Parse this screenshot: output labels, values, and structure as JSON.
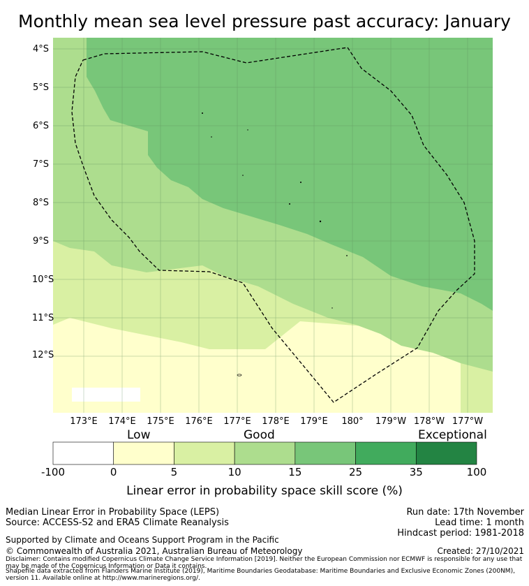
{
  "title": "Monthly mean sea level pressure past accuracy: January",
  "map": {
    "lat_labels": [
      "4°S",
      "5°S",
      "6°S",
      "7°S",
      "8°S",
      "9°S",
      "10°S",
      "11°S",
      "12°S"
    ],
    "lon_labels": [
      "173°E",
      "174°E",
      "175°E",
      "176°E",
      "177°E",
      "178°E",
      "179°E",
      "180°",
      "179°W",
      "178°W",
      "177°W"
    ],
    "boundary": "Fiji EEZ (dashed)"
  },
  "colorbar": {
    "categories": [
      "Low",
      "Good",
      "Exceptional"
    ],
    "ticks": [
      "-100",
      "0",
      "5",
      "10",
      "15",
      "25",
      "35",
      "100"
    ],
    "colors": [
      "#ffffff",
      "#ffffcc",
      "#d9f0a3",
      "#addd8e",
      "#78c679",
      "#41ab5d",
      "#238443"
    ],
    "label": "Linear error in probability space skill score (%)"
  },
  "info": {
    "line1": "Median Linear Error in Probability Space (LEPS)",
    "line2": "Source: ACCESS-S2 and ERA5 Climate Reanalysis",
    "run_date": "Run date: 17th November",
    "lead_time": "Lead time: 1 month",
    "hindcast": "Hindcast period: 1981-2018",
    "support": "Supported by Climate and Oceans Support Program in the Pacific",
    "copyright": "© Commonwealth of Australia 2021, Australian Bureau of Meteorology",
    "created": "Created: 27/10/2021",
    "disclaimer": "Disclaimer: Contains modified Copernicus Climate Change Service Information [2019]. Neither the European Commission nor ECMWF is responsible for any use that may be made of the Copernicus Information or Data it contains.",
    "shapefile": "Shapefile data extracted from Flanders Marine Institute (2019), Maritime Boundaries Geodatabase: Maritime Boundaries and Exclusive Economic Zones (200NM), version 11. Available online at http://www.marineregions.org/."
  }
}
